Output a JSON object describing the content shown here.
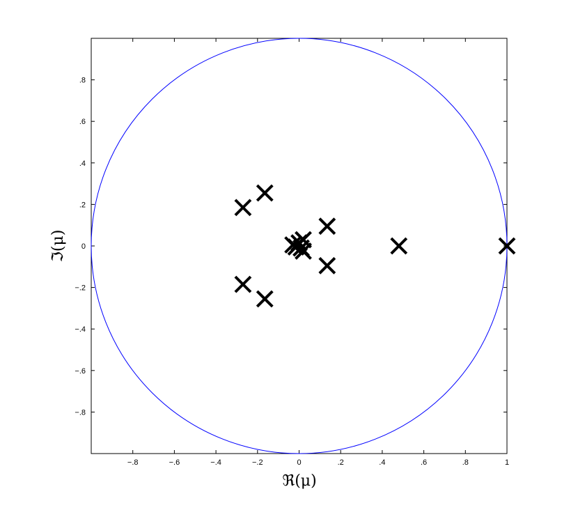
{
  "chart_data": {
    "type": "scatter",
    "title": "",
    "xlabel": "ℜ(μ)",
    "ylabel": "ℑ(μ)",
    "xlim": [
      -1,
      1
    ],
    "ylim": [
      -1,
      1
    ],
    "xticks": [
      -0.8,
      -0.6,
      -0.4,
      -0.2,
      0,
      0.2,
      0.4,
      0.6,
      0.8,
      1
    ],
    "yticks": [
      -0.8,
      -0.6,
      -0.4,
      -0.2,
      0,
      0.2,
      0.4,
      0.6,
      0.8
    ],
    "grid": false,
    "series": [
      {
        "marker": "x",
        "color": "#000000",
        "points": [
          {
            "x": 1.0,
            "y": 0.0
          },
          {
            "x": 0.48,
            "y": 0.0
          },
          {
            "x": 0.135,
            "y": 0.095
          },
          {
            "x": 0.135,
            "y": -0.095
          },
          {
            "x": -0.27,
            "y": 0.185
          },
          {
            "x": -0.27,
            "y": -0.185
          },
          {
            "x": -0.165,
            "y": 0.255
          },
          {
            "x": -0.165,
            "y": -0.255
          },
          {
            "x": -0.03,
            "y": 0.005
          },
          {
            "x": -0.015,
            "y": -0.005
          },
          {
            "x": 0.0,
            "y": 0.015
          },
          {
            "x": 0.01,
            "y": -0.01
          },
          {
            "x": 0.02,
            "y": 0.03
          },
          {
            "x": 0.02,
            "y": -0.025
          }
        ]
      }
    ],
    "reference_circle": {
      "center": [
        0,
        0
      ],
      "radius": 1,
      "color": "#0000ff"
    }
  }
}
